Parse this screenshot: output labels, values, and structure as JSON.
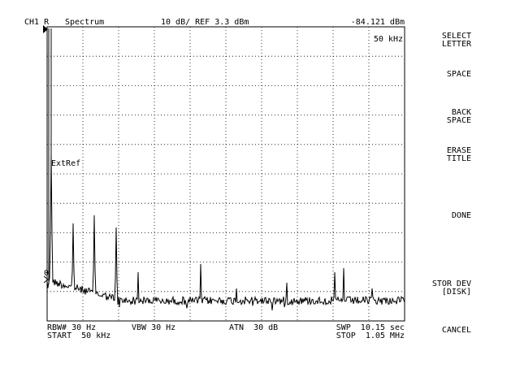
{
  "header": {
    "channel": "CH1 R",
    "mode": "Spectrum",
    "scale": "10 dB/ REF 3.3 dBm",
    "marker_value": "-84.121 dBm"
  },
  "marker_freq": "50 kHz",
  "marker_name": "ExtRef",
  "ref_marker": "0",
  "softkeys": [
    {
      "lines": [
        "SELECT",
        "LETTER"
      ]
    },
    {
      "lines": [
        "SPACE"
      ]
    },
    {
      "lines": [
        "BACK",
        "SPACE"
      ]
    },
    {
      "lines": [
        "ERASE",
        "TITLE"
      ]
    },
    {
      "lines": [
        "DONE"
      ]
    },
    {
      "lines": [
        "STOR DEV",
        "[DISK]"
      ]
    },
    {
      "lines": [
        "CANCEL"
      ]
    }
  ],
  "footer": {
    "rbw": "RBW# 30 Hz",
    "vbw": "VBW 30 Hz",
    "atn": "ATN  30 dB",
    "swp": "SWP  10.15 sec",
    "start": "START  50 kHz",
    "stop": "STOP  1.05 MHz"
  }
}
